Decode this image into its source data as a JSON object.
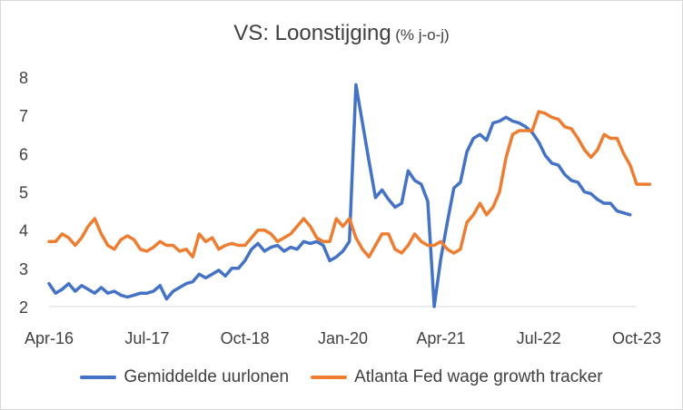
{
  "chart_data": {
    "type": "line",
    "title": "VS: Loonstijging",
    "subtitle": "(% j-o-j)",
    "ylim": [
      2,
      8
    ],
    "yticks": [
      "2",
      "3",
      "4",
      "5",
      "6",
      "7",
      "8"
    ],
    "xlim": [
      "2016-04",
      "2023-10"
    ],
    "xticks": [
      "Apr-16",
      "Jul-17",
      "Oct-18",
      "Jan-20",
      "Apr-21",
      "Jul-22",
      "Oct-23"
    ],
    "grid": false,
    "legend_position": "bottom",
    "series": [
      {
        "name": "Gemiddelde uurlonen",
        "color": "#4472C4",
        "start": "2016-04",
        "values": [
          2.6,
          2.35,
          2.45,
          2.6,
          2.4,
          2.55,
          2.45,
          2.35,
          2.5,
          2.35,
          2.4,
          2.3,
          2.25,
          2.3,
          2.35,
          2.35,
          2.4,
          2.55,
          2.2,
          2.4,
          2.5,
          2.6,
          2.65,
          2.85,
          2.75,
          2.85,
          2.95,
          2.8,
          3.0,
          3.0,
          3.2,
          3.5,
          3.65,
          3.45,
          3.55,
          3.6,
          3.45,
          3.55,
          3.5,
          3.7,
          3.65,
          3.7,
          3.6,
          3.2,
          3.3,
          3.45,
          3.7,
          7.8,
          6.8,
          5.8,
          4.85,
          5.05,
          4.8,
          4.6,
          4.7,
          5.55,
          5.3,
          5.2,
          4.75,
          2.0,
          3.25,
          4.2,
          5.1,
          5.25,
          6.05,
          6.4,
          6.5,
          6.35,
          6.8,
          6.85,
          6.95,
          6.85,
          6.8,
          6.7,
          6.55,
          6.3,
          5.95,
          5.75,
          5.7,
          5.45,
          5.3,
          5.25,
          5.0,
          4.95,
          4.8,
          4.7,
          4.7,
          4.5,
          4.45,
          4.4
        ]
      },
      {
        "name": "Atlanta Fed wage growth tracker",
        "color": "#ED7D31",
        "start": "2016-04",
        "values": [
          3.7,
          3.7,
          3.9,
          3.8,
          3.6,
          3.8,
          4.1,
          4.3,
          3.9,
          3.6,
          3.5,
          3.75,
          3.85,
          3.75,
          3.5,
          3.45,
          3.55,
          3.7,
          3.6,
          3.6,
          3.45,
          3.5,
          3.3,
          3.9,
          3.7,
          3.8,
          3.5,
          3.6,
          3.65,
          3.6,
          3.6,
          3.8,
          4.0,
          4.0,
          3.9,
          3.7,
          3.8,
          3.9,
          4.1,
          4.3,
          4.1,
          3.8,
          3.7,
          3.7,
          4.3,
          4.1,
          4.3,
          3.8,
          3.5,
          3.3,
          3.6,
          3.9,
          3.9,
          3.5,
          3.4,
          3.6,
          3.9,
          3.7,
          3.6,
          3.6,
          3.7,
          3.5,
          3.4,
          3.5,
          4.2,
          4.4,
          4.7,
          4.4,
          4.6,
          5.0,
          5.9,
          6.5,
          6.6,
          6.6,
          6.6,
          7.1,
          7.05,
          6.95,
          6.9,
          6.7,
          6.65,
          6.4,
          6.1,
          5.9,
          6.1,
          6.5,
          6.4,
          6.4,
          6.0,
          5.7,
          5.2,
          5.2,
          5.2
        ]
      }
    ]
  }
}
